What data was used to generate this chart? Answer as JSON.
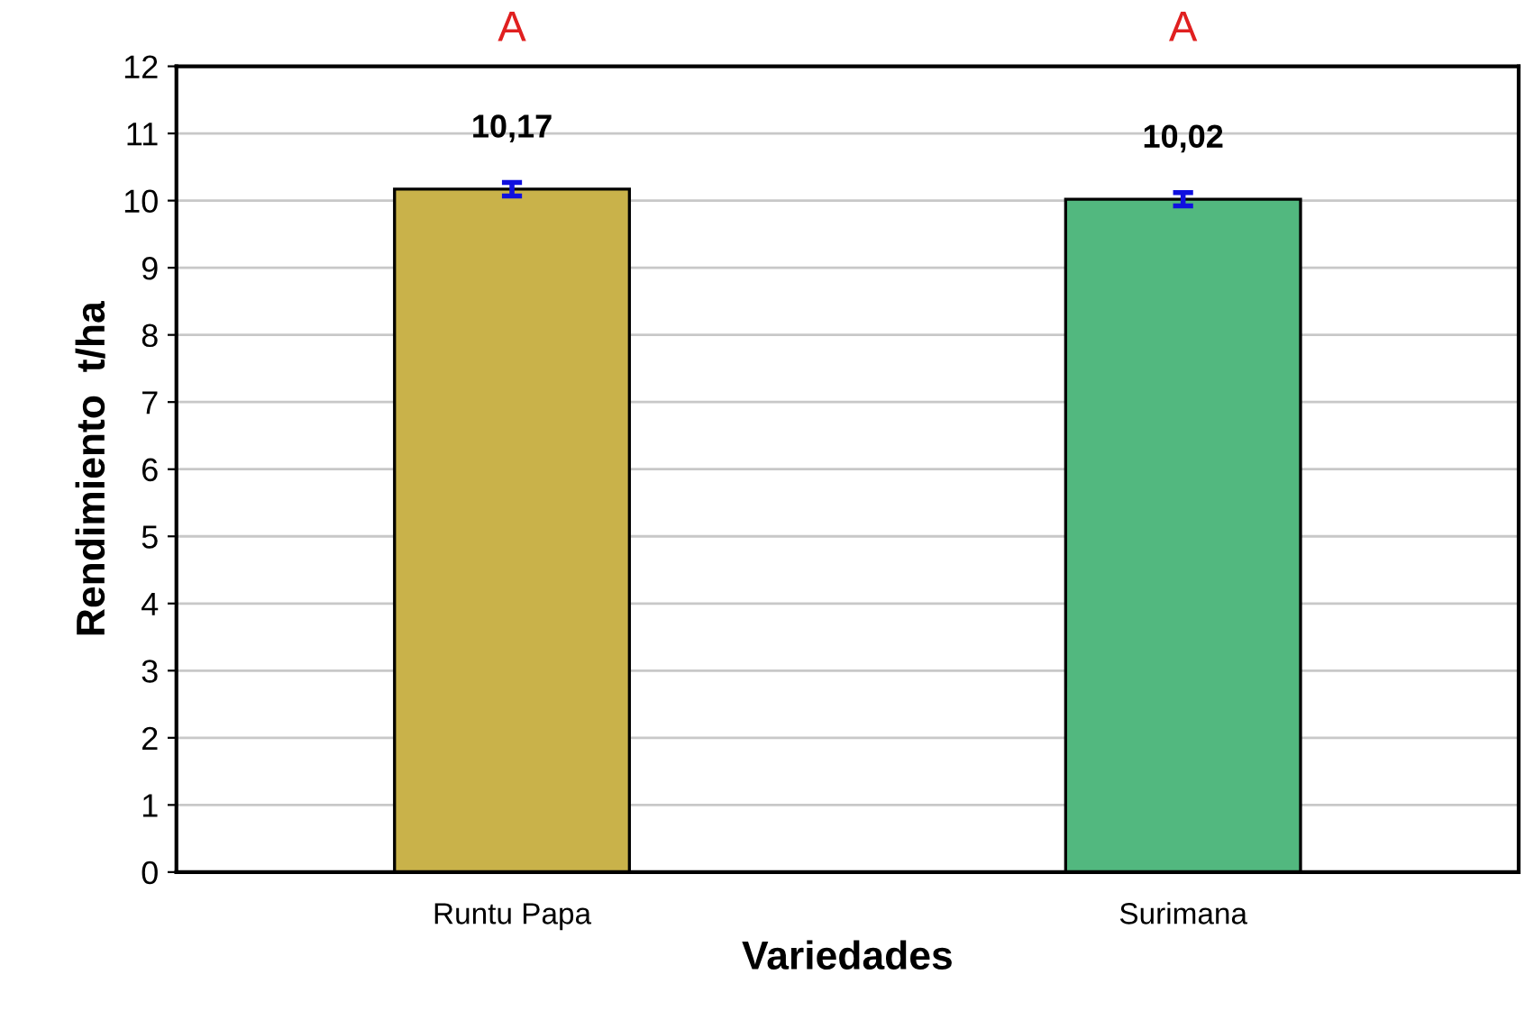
{
  "chart_data": {
    "type": "bar",
    "xlabel": "Variedades",
    "ylabel": "Rendimiento  t/ha",
    "categories": [
      "Runtu Papa",
      "Surimana"
    ],
    "values": [
      10.17,
      10.02
    ],
    "colors": [
      "#c9b24a",
      "#52b87f"
    ],
    "errors": [
      0.1,
      0.1
    ],
    "value_labels": [
      "10,17",
      "10,02"
    ],
    "annotations": [
      "A",
      "A"
    ],
    "ylim": [
      0,
      12
    ],
    "yticks": [
      0,
      1,
      2,
      3,
      4,
      5,
      6,
      7,
      8,
      9,
      10,
      11,
      12
    ],
    "grid": "y",
    "legend": false
  }
}
